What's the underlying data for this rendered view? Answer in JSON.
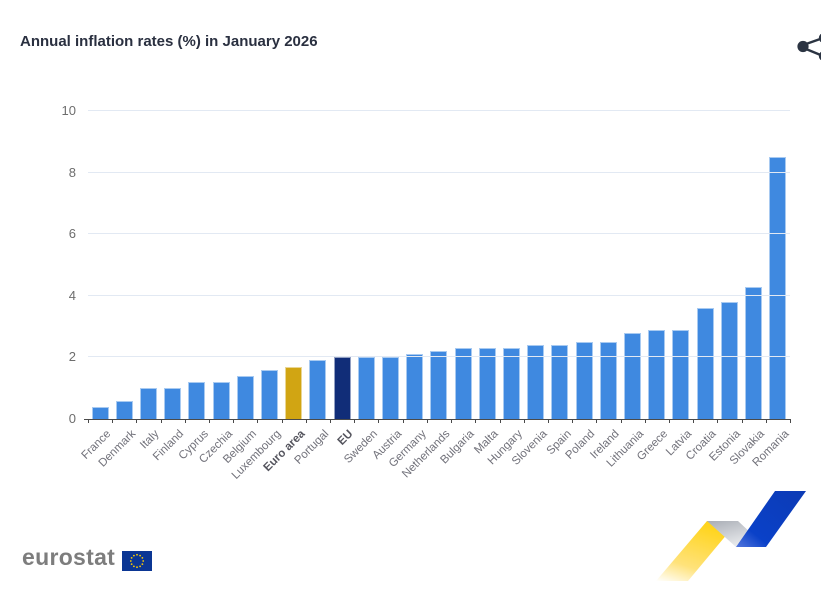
{
  "header": {
    "title": "Annual inflation rates (%) in January 2026",
    "share_icon": "share-nodes"
  },
  "chart_data": {
    "type": "bar",
    "title": "Annual inflation rates (%) in January 2026",
    "categories": [
      "France",
      "Denmark",
      "Italy",
      "Finland",
      "Cyprus",
      "Czechia",
      "Belgium",
      "Luxembourg",
      "Euro area",
      "Portugal",
      "EU",
      "Sweden",
      "Austria",
      "Germany",
      "Netherlands",
      "Bulgaria",
      "Malta",
      "Hungary",
      "Slovenia",
      "Spain",
      "Poland",
      "Ireland",
      "Lithuania",
      "Greece",
      "Latvia",
      "Croatia",
      "Estonia",
      "Slovakia",
      "Romania"
    ],
    "values": [
      0.4,
      0.6,
      1.0,
      1.0,
      1.2,
      1.2,
      1.4,
      1.6,
      1.7,
      1.9,
      2.0,
      2.0,
      2.0,
      2.1,
      2.2,
      2.3,
      2.3,
      2.3,
      2.4,
      2.4,
      2.5,
      2.5,
      2.8,
      2.9,
      2.9,
      3.6,
      3.8,
      4.3,
      8.5
    ],
    "xlabel": "",
    "ylabel": "",
    "ylim": [
      0,
      10
    ],
    "yticks": [
      0,
      2,
      4,
      6,
      8,
      10
    ],
    "grid": true,
    "legend": false,
    "bar_color": "#3f89e0",
    "highlight_colors": {
      "Euro area": "#d1a513",
      "EU": "#112d78"
    },
    "bold_categories": [
      "Euro area",
      "EU"
    ]
  },
  "footer": {
    "logo_text": "eurostat",
    "flag_color": "#0b3694",
    "star_color": "#ffcc00",
    "ribbon_colors": {
      "yellow": "#ffd41c",
      "gray": "#b9bdc4",
      "blue": "#0a41c8"
    }
  },
  "colors": {
    "title": "#2a3040",
    "axis_labels": "#6d6d6d",
    "gridline": "#e2e9f3",
    "axis_line": "#4a4a4a",
    "icon": "#2b3442"
  }
}
